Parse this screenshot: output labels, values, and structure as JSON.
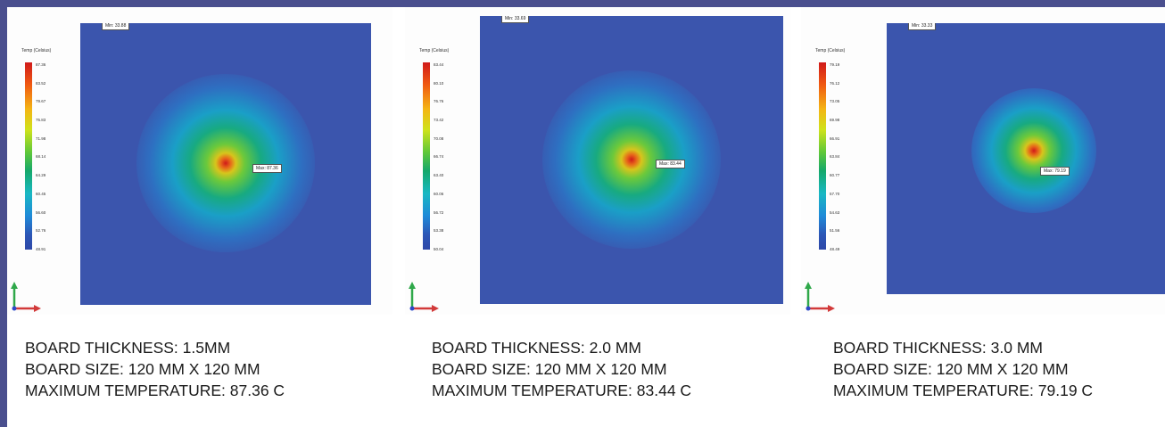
{
  "panels": [
    {
      "legend_title": "Temp (Celsius)",
      "legend_ticks": [
        "87.36",
        "83.52",
        "79.67",
        "75.83",
        "71.98",
        "68.14",
        "64.29",
        "60.45",
        "56.60",
        "52.76",
        "48.91"
      ],
      "min_label": "Min: 33.88",
      "max_label": "Max: 87.36",
      "caption": {
        "thickness": "BOARD THICKNESS: 1.5MM",
        "size": "BOARD SIZE: 120 MM X 120 MM",
        "max_temp": "MAXIMUM TEMPERATURE: 87.36 C"
      }
    },
    {
      "legend_title": "Temp (Celsius)",
      "legend_ticks": [
        "83.44",
        "80.10",
        "76.76",
        "73.42",
        "70.08",
        "66.74",
        "63.40",
        "60.06",
        "56.72",
        "53.38",
        "50.04"
      ],
      "min_label": "Min: 33.69",
      "max_label": "Max: 83.44",
      "caption": {
        "thickness": "BOARD THICKNESS: 2.0 MM",
        "size": "BOARD SIZE: 120 MM X 120 MM",
        "max_temp": "MAXIMUM TEMPERATURE: 83.44 C"
      }
    },
    {
      "legend_title": "Temp (Celsius)",
      "legend_ticks": [
        "79.19",
        "76.12",
        "73.05",
        "69.98",
        "66.91",
        "63.84",
        "60.77",
        "57.70",
        "54.63",
        "51.56",
        "48.49"
      ],
      "min_label": "Min: 33.33",
      "max_label": "Max: 79.19",
      "caption": {
        "thickness": "BOARD THICKNESS: 3.0 MM",
        "size": "BOARD SIZE: 120 MM X 120 MM",
        "max_temp": "MAXIMUM TEMPERATURE: 79.19 C"
      }
    }
  ],
  "colors": {
    "background_frame": "#4a4f8e",
    "plot_cold": "#3b55ad",
    "hotspot": "#d01a1a",
    "axis_y": "#2fa84a",
    "axis_x": "#d23a3a"
  }
}
